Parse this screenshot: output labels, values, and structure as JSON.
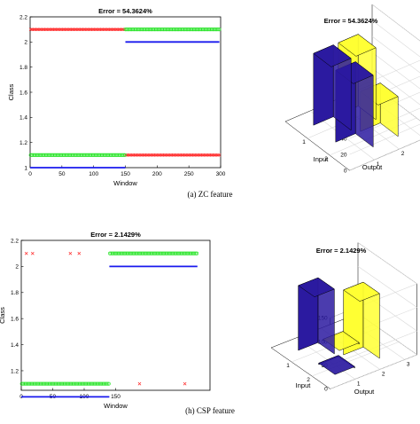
{
  "captions": {
    "top": "(a) ZC feature",
    "bottom": "(h) CSP feature"
  },
  "colors": {
    "red": "#ff2a2a",
    "green": "#2ee52e",
    "blue": "#1a1aee",
    "bar_blue": "#2b1aa0",
    "bar_yellow": "#ffff33"
  },
  "chart_data": [
    {
      "id": "zc-scatter",
      "type": "scatter",
      "title": "Error = 54.3624%",
      "xlabel": "Window",
      "ylabel": "Class",
      "xlim": [
        0,
        300
      ],
      "ylim": [
        1,
        2.2
      ],
      "xticks": [
        0,
        50,
        100,
        150,
        200,
        250,
        300
      ],
      "yticks": [
        1,
        1.2,
        1.4,
        1.6,
        1.8,
        2,
        2.2
      ],
      "series": [
        {
          "color": "red",
          "marker": "x",
          "segments": [
            {
              "x": [
                1,
                149
              ],
              "y": 2.1
            },
            {
              "x": [
                150,
                298
              ],
              "y": 1.1
            }
          ]
        },
        {
          "color": "green",
          "marker": "o",
          "segments": [
            {
              "x": [
                1,
                149
              ],
              "y": 1.1
            },
            {
              "x": [
                150,
                298
              ],
              "y": 2.1
            }
          ]
        },
        {
          "color": "blue",
          "marker": "line",
          "segments": [
            {
              "x": [
                0,
                150
              ],
              "y": 1.0
            },
            {
              "x": [
                150,
                298
              ],
              "y": 2.0
            }
          ]
        }
      ]
    },
    {
      "id": "zc-bar3d",
      "type": "bar3d",
      "title": "Error = 54.3624%",
      "xlabel": "Input",
      "ylabel": "Output",
      "zlim": [
        0,
        100
      ],
      "zticks": [
        0,
        20,
        40,
        60,
        80,
        100
      ],
      "input_ticks": [
        "1",
        "2"
      ],
      "output_ticks": [
        "1",
        "2",
        "3"
      ],
      "values": {
        "input1_output1": 90,
        "input2_output1": 90,
        "input1_output2": 90,
        "input2_output2": 50
      }
    },
    {
      "id": "csp-scatter",
      "type": "scatter",
      "title": "Error = 2.1429%",
      "xlabel": "Window",
      "ylabel": "Class",
      "xlim": [
        0,
        300
      ],
      "ylim": [
        1.05,
        2.2
      ],
      "xticks": [
        0,
        50,
        100,
        150
      ],
      "yticks": [
        1.2,
        1.4,
        1.6,
        1.8,
        2,
        2.2
      ],
      "series": [
        {
          "color": "red",
          "marker": "x",
          "points": [
            [
              8,
              2.1
            ],
            [
              18,
              2.1
            ],
            [
              78,
              2.1
            ],
            [
              92,
              2.1
            ],
            [
              188,
              1.1
            ],
            [
              260,
              1.1
            ]
          ]
        },
        {
          "color": "green",
          "marker": "o",
          "segments": [
            {
              "x": [
                1,
                140
              ],
              "y": 1.1
            },
            {
              "x": [
                141,
                280
              ],
              "y": 2.1
            }
          ]
        },
        {
          "color": "blue",
          "marker": "line",
          "segments": [
            {
              "x": [
                0,
                140
              ],
              "y": 1.0
            },
            {
              "x": [
                140,
                280
              ],
              "y": 2.0
            }
          ]
        }
      ]
    },
    {
      "id": "csp-bar3d",
      "type": "bar3d",
      "title": "Error = 2.1429%",
      "xlabel": "Input",
      "ylabel": "Output",
      "zlim": [
        0,
        150
      ],
      "zticks": [
        0,
        50,
        100,
        150
      ],
      "input_ticks": [
        "1",
        "2"
      ],
      "output_ticks": [
        "1",
        "2",
        "3"
      ],
      "values": {
        "input1_output1": 137,
        "input2_output1": 3,
        "input1_output2": 3,
        "input2_output2": 137
      }
    }
  ]
}
